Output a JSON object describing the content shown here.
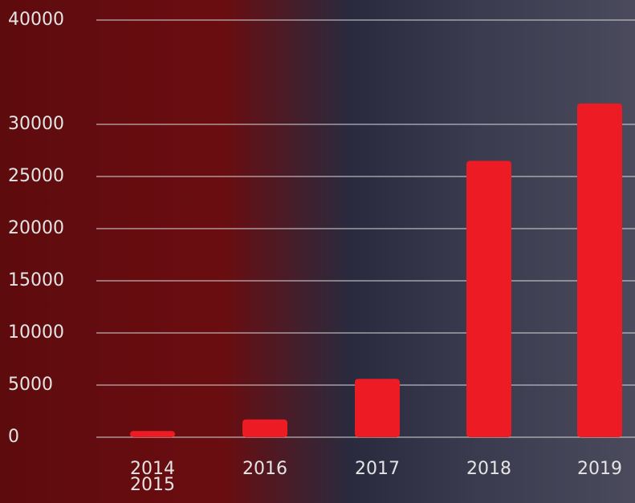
{
  "chart_data": {
    "type": "bar",
    "categories": [
      "2014\n2015",
      "2016",
      "2017",
      "2018",
      "2019"
    ],
    "values": [
      600,
      1700,
      5600,
      26500,
      32000
    ],
    "color": "#ed1c24",
    "ylim": [
      0,
      40000
    ],
    "yticks": [
      0,
      5000,
      10000,
      15000,
      20000,
      25000,
      30000,
      40000
    ],
    "grid": true
  }
}
